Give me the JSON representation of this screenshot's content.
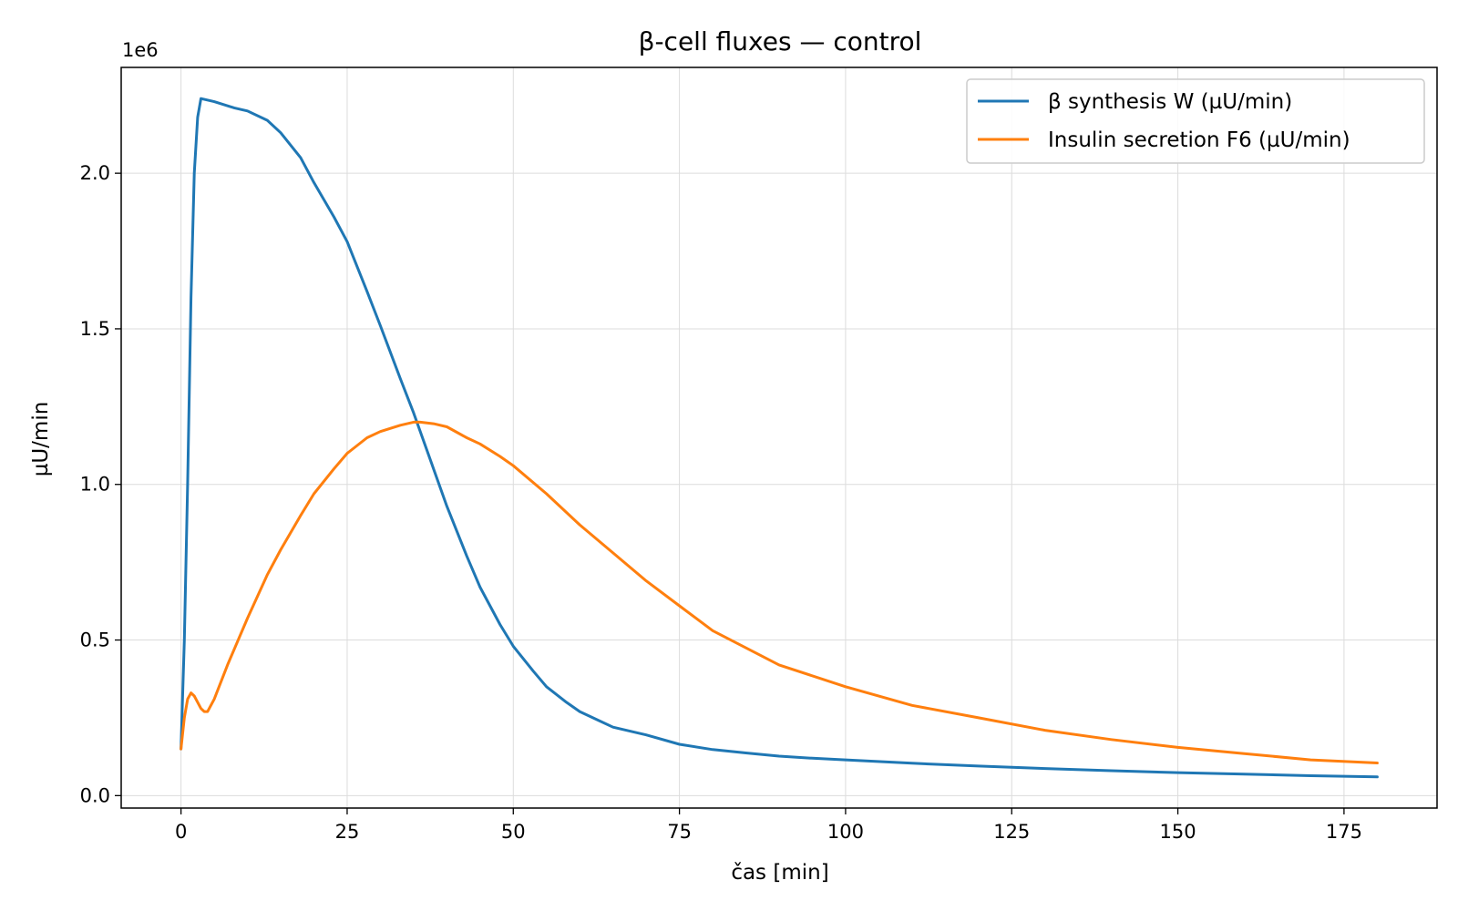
{
  "chart_data": {
    "type": "line",
    "title": "β-cell fluxes — control",
    "xlabel": "čas [min]",
    "ylabel": "µU/min",
    "y_offset_text": "1e6",
    "xlim": [
      -9,
      189
    ],
    "ylim": [
      -0.04,
      2.34
    ],
    "y_scale_factor": 1000000,
    "xticks": [
      0,
      25,
      50,
      75,
      100,
      125,
      150,
      175
    ],
    "xtick_labels": [
      "0",
      "25",
      "50",
      "75",
      "100",
      "125",
      "150",
      "175"
    ],
    "yticks": [
      0.0,
      0.5,
      1.0,
      1.5,
      2.0
    ],
    "ytick_labels": [
      "0.0",
      "0.5",
      "1.0",
      "1.5",
      "2.0"
    ],
    "grid": true,
    "legend_position": "top-right",
    "series": [
      {
        "name": "β synthesis W (µU/min)",
        "color": "#1f77b4",
        "x": [
          0,
          0.5,
          1,
          1.5,
          2,
          2.5,
          3,
          5,
          8,
          10,
          13,
          15,
          18,
          20,
          23,
          25,
          28,
          30,
          33,
          35,
          38,
          40,
          43,
          45,
          48,
          50,
          53,
          55,
          58,
          60,
          63,
          65,
          68,
          70,
          75,
          80,
          85,
          90,
          95,
          100,
          110,
          120,
          130,
          140,
          150,
          160,
          170,
          180
        ],
        "y": [
          0.15,
          0.5,
          1.0,
          1.6,
          2.0,
          2.18,
          2.24,
          2.23,
          2.21,
          2.2,
          2.17,
          2.13,
          2.05,
          1.97,
          1.86,
          1.78,
          1.62,
          1.51,
          1.34,
          1.23,
          1.05,
          0.93,
          0.77,
          0.67,
          0.55,
          0.48,
          0.4,
          0.35,
          0.3,
          0.27,
          0.24,
          0.22,
          0.205,
          0.195,
          0.165,
          0.148,
          0.137,
          0.127,
          0.12,
          0.115,
          0.104,
          0.095,
          0.087,
          0.08,
          0.074,
          0.069,
          0.064,
          0.06
        ]
      },
      {
        "name": "Insulin secretion F6 (µU/min)",
        "color": "#ff7f0e",
        "x": [
          0,
          0.5,
          1,
          1.5,
          2,
          2.5,
          3,
          3.5,
          4,
          5,
          7,
          10,
          13,
          15,
          18,
          20,
          23,
          25,
          28,
          30,
          33,
          35,
          36,
          38,
          40,
          43,
          45,
          48,
          50,
          55,
          60,
          65,
          70,
          75,
          80,
          90,
          100,
          110,
          120,
          130,
          140,
          150,
          160,
          170,
          180
        ],
        "y": [
          0.15,
          0.25,
          0.31,
          0.33,
          0.32,
          0.3,
          0.28,
          0.27,
          0.27,
          0.31,
          0.42,
          0.57,
          0.71,
          0.79,
          0.9,
          0.97,
          1.05,
          1.1,
          1.15,
          1.17,
          1.19,
          1.2,
          1.2,
          1.195,
          1.185,
          1.15,
          1.13,
          1.09,
          1.06,
          0.97,
          0.87,
          0.78,
          0.69,
          0.61,
          0.53,
          0.42,
          0.35,
          0.29,
          0.25,
          0.21,
          0.18,
          0.155,
          0.135,
          0.115,
          0.105
        ]
      }
    ]
  }
}
